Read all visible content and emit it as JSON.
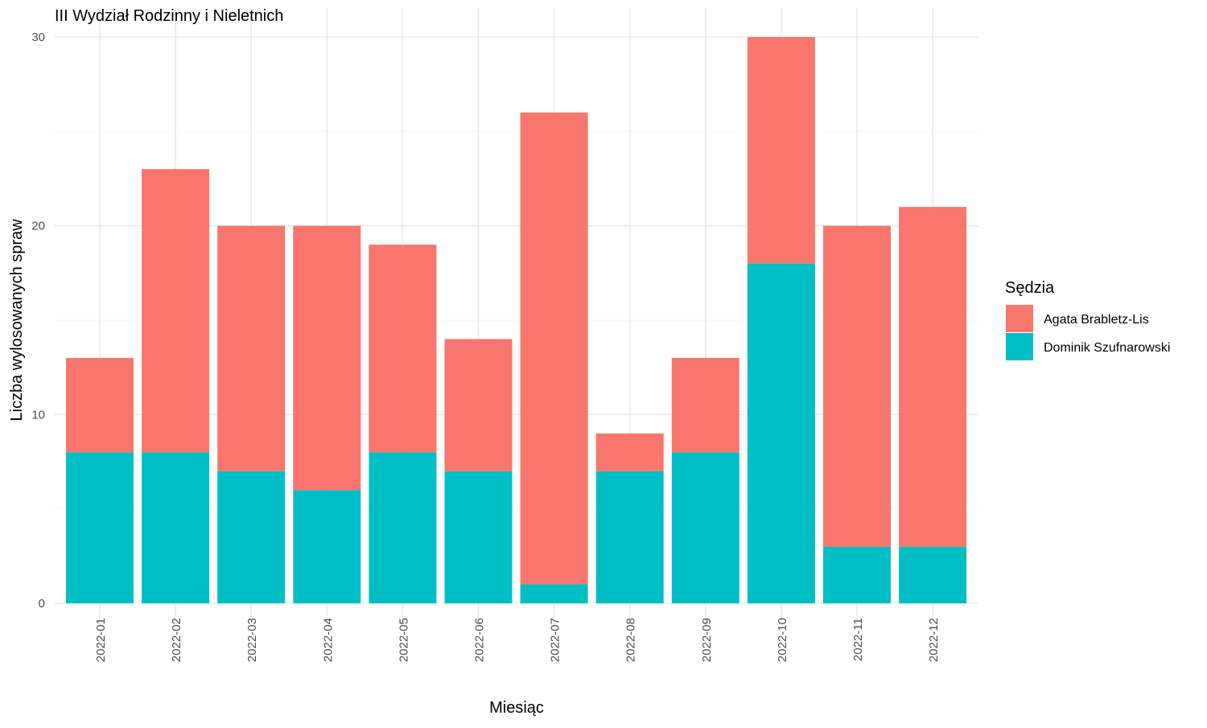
{
  "chart_data": {
    "type": "bar",
    "stacked": true,
    "title": "III Wydział Rodzinny i Nieletnich",
    "xlabel": "Miesiąc",
    "ylabel": "Liczba wylosowanych spraw",
    "ylim": [
      0,
      30
    ],
    "yticks": [
      0,
      10,
      20,
      30
    ],
    "grid": true,
    "legend_position": "right",
    "legend_title": "Sędzia",
    "categories": [
      "2022-01",
      "2022-02",
      "2022-03",
      "2022-04",
      "2022-05",
      "2022-06",
      "2022-07",
      "2022-08",
      "2022-09",
      "2022-10",
      "2022-11",
      "2022-12"
    ],
    "series": [
      {
        "name": "Agata Brabletz-Lis",
        "color": "#F8766D",
        "values": [
          5,
          15,
          13,
          14,
          11,
          7,
          25,
          2,
          5,
          12,
          17,
          18
        ]
      },
      {
        "name": "Dominik Szufnarowski",
        "color": "#00BFC4",
        "values": [
          8,
          8,
          7,
          6,
          8,
          7,
          1,
          7,
          8,
          18,
          3,
          3
        ]
      }
    ]
  }
}
